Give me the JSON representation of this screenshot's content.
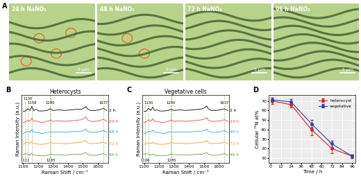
{
  "panel_A": {
    "label": "A",
    "images": [
      {
        "text": "24 h NaNO₃",
        "scale_bar": "5 μm",
        "circles": 4
      },
      {
        "text": "48 h NaNO₃",
        "scale_bar": "5 μm",
        "circles": 2
      },
      {
        "text": "72 h NaNO₃",
        "scale_bar": "5 μm",
        "circles": 0
      },
      {
        "text": "96 h NaNO₃",
        "scale_bar": "5 μm",
        "circles": 0
      }
    ]
  },
  "chart_data": [
    {
      "label": "B",
      "type": "line",
      "title": "Heterocysts",
      "x_label": "Raman Shift / cm⁻¹",
      "y_label": "Raman Intensity (a.u.)",
      "x": [
        1100,
        1115,
        1130,
        1145,
        1158,
        1170,
        1189,
        1205,
        1230,
        1260,
        1280,
        1300,
        1340,
        1380,
        1420,
        1460,
        1490,
        1510,
        1520,
        1530,
        1550,
        1580,
        1610,
        1637,
        1660
      ],
      "series": [
        {
          "name": "2 h",
          "color": "#000000",
          "values": [
            4.3,
            4.35,
            4.55,
            4.4,
            4.75,
            4.4,
            4.5,
            4.35,
            4.35,
            4.4,
            4.55,
            4.4,
            4.45,
            4.4,
            4.45,
            4.5,
            4.5,
            4.65,
            4.75,
            4.55,
            4.4,
            4.4,
            4.45,
            4.6,
            4.4
          ]
        },
        {
          "name": "24 h",
          "color": "#e8474a",
          "values": [
            3.3,
            3.35,
            3.5,
            3.4,
            3.7,
            3.4,
            3.45,
            3.35,
            3.3,
            3.4,
            3.5,
            3.4,
            3.45,
            3.4,
            3.45,
            3.5,
            3.55,
            3.7,
            3.8,
            3.55,
            3.4,
            3.4,
            3.45,
            3.6,
            3.4
          ]
        },
        {
          "name": "48 h",
          "color": "#2aa6c8",
          "values": [
            2.3,
            2.4,
            2.5,
            2.4,
            2.65,
            2.4,
            2.4,
            2.35,
            2.3,
            2.4,
            2.45,
            2.4,
            2.45,
            2.4,
            2.45,
            2.5,
            2.5,
            2.6,
            2.7,
            2.5,
            2.4,
            2.4,
            2.45,
            2.55,
            2.4
          ]
        },
        {
          "name": "72 h",
          "color": "#f39c2b",
          "values": [
            1.3,
            1.4,
            1.5,
            1.35,
            1.55,
            1.35,
            1.35,
            1.3,
            1.3,
            1.35,
            1.45,
            1.4,
            1.4,
            1.35,
            1.4,
            1.45,
            1.5,
            1.6,
            1.65,
            1.45,
            1.35,
            1.4,
            1.4,
            1.5,
            1.35
          ]
        },
        {
          "name": "96 h",
          "color": "#6a9a3a",
          "values": [
            0.35,
            0.45,
            0.4,
            0.3,
            0.45,
            0.3,
            0.3,
            0.25,
            0.25,
            0.3,
            0.4,
            0.35,
            0.35,
            0.3,
            0.35,
            0.4,
            0.4,
            0.5,
            0.55,
            0.4,
            0.3,
            0.3,
            0.35,
            0.45,
            0.3
          ]
        }
      ],
      "xlim": [
        1090,
        1670
      ],
      "ylim": [
        -0.4,
        5.8
      ],
      "xticks": [
        1100,
        1200,
        1300,
        1400,
        1500,
        1600
      ],
      "tick_labels": "x",
      "annotations": [
        {
          "text": "1130",
          "x": 1130,
          "y": 5.3
        },
        {
          "text": "1158",
          "x": 1158,
          "y": 4.9
        },
        {
          "text": "1280",
          "x": 1280,
          "y": 4.9
        },
        {
          "text": "1637",
          "x": 1637,
          "y": 4.9
        },
        {
          "text": "1111",
          "x": 1111,
          "y": -0.35
        },
        {
          "text": "1285",
          "x": 1285,
          "y": -0.35
        }
      ]
    },
    {
      "label": "C",
      "type": "line",
      "title": "Vegetative cells",
      "x_label": "Raman Shift / cm⁻¹",
      "y_label": "Raman Intensity (a.u.)",
      "x": [
        1100,
        1115,
        1130,
        1145,
        1158,
        1170,
        1189,
        1205,
        1230,
        1260,
        1280,
        1300,
        1340,
        1380,
        1420,
        1460,
        1490,
        1510,
        1520,
        1530,
        1550,
        1580,
        1610,
        1637,
        1660
      ],
      "series": [
        {
          "name": "2 h",
          "color": "#000000",
          "values": [
            4.3,
            4.35,
            4.6,
            4.4,
            4.7,
            4.4,
            4.45,
            4.35,
            4.35,
            4.4,
            4.5,
            4.4,
            4.45,
            4.4,
            4.45,
            4.5,
            4.55,
            4.7,
            4.8,
            4.55,
            4.4,
            4.4,
            4.45,
            4.55,
            4.4
          ]
        },
        {
          "name": "24 h",
          "color": "#e8474a",
          "values": [
            3.3,
            3.35,
            3.55,
            3.4,
            3.65,
            3.4,
            3.4,
            3.35,
            3.3,
            3.4,
            3.5,
            3.4,
            3.45,
            3.4,
            3.45,
            3.5,
            3.55,
            3.65,
            3.75,
            3.5,
            3.4,
            3.4,
            3.45,
            3.55,
            3.4
          ]
        },
        {
          "name": "48 h",
          "color": "#2aa6c8",
          "values": [
            2.3,
            2.35,
            2.5,
            2.4,
            2.6,
            2.4,
            2.4,
            2.35,
            2.3,
            2.4,
            2.45,
            2.4,
            2.45,
            2.4,
            2.45,
            2.5,
            2.5,
            2.6,
            2.7,
            2.5,
            2.4,
            2.4,
            2.45,
            2.55,
            2.4
          ]
        },
        {
          "name": "72 h",
          "color": "#f39c2b",
          "values": [
            1.3,
            1.4,
            1.45,
            1.35,
            1.5,
            1.35,
            1.35,
            1.3,
            1.3,
            1.35,
            1.45,
            1.4,
            1.4,
            1.35,
            1.4,
            1.45,
            1.5,
            1.55,
            1.65,
            1.45,
            1.35,
            1.4,
            1.4,
            1.5,
            1.35
          ]
        },
        {
          "name": "96 h",
          "color": "#6a9a3a",
          "values": [
            0.4,
            0.45,
            0.4,
            0.3,
            0.4,
            0.3,
            0.3,
            0.25,
            0.25,
            0.3,
            0.4,
            0.35,
            0.35,
            0.3,
            0.35,
            0.4,
            0.4,
            0.5,
            0.55,
            0.4,
            0.3,
            0.3,
            0.35,
            0.45,
            0.3
          ]
        }
      ],
      "xlim": [
        1090,
        1670
      ],
      "ylim": [
        -0.4,
        5.8
      ],
      "xticks": [
        1100,
        1200,
        1300,
        1400,
        1500,
        1600
      ],
      "tick_labels": "x",
      "annotations": [
        {
          "text": "1130",
          "x": 1130,
          "y": 4.9
        },
        {
          "text": "1280",
          "x": 1280,
          "y": 4.9
        },
        {
          "text": "1637",
          "x": 1637,
          "y": 4.9
        },
        {
          "text": "1106",
          "x": 1106,
          "y": -0.35
        },
        {
          "text": "1285",
          "x": 1285,
          "y": -0.35
        }
      ]
    },
    {
      "label": "D",
      "type": "line",
      "x_label": "Time / h",
      "y_label": "Cellular ¹⁵N at%",
      "x": [
        2,
        24,
        48,
        72,
        96
      ],
      "series": [
        {
          "name": "heterocyst",
          "color": "#e41a1c",
          "marker": "o",
          "values": [
            70,
            66,
            40,
            20,
            12
          ],
          "errors": [
            3,
            3,
            6,
            5,
            2
          ]
        },
        {
          "name": "vegetative",
          "color": "#2a3ea8",
          "marker": "o",
          "values": [
            71,
            69,
            46,
            25,
            12
          ],
          "errors": [
            2,
            3,
            4,
            3,
            2
          ]
        }
      ],
      "xlim": [
        -2,
        100
      ],
      "ylim": [
        5,
        76
      ],
      "xticks": [
        0,
        12,
        24,
        36,
        48,
        60,
        72,
        84,
        96
      ],
      "yticks": [
        10,
        20,
        30,
        40,
        50,
        60,
        70
      ],
      "grid": true,
      "legend": "upper right"
    }
  ]
}
